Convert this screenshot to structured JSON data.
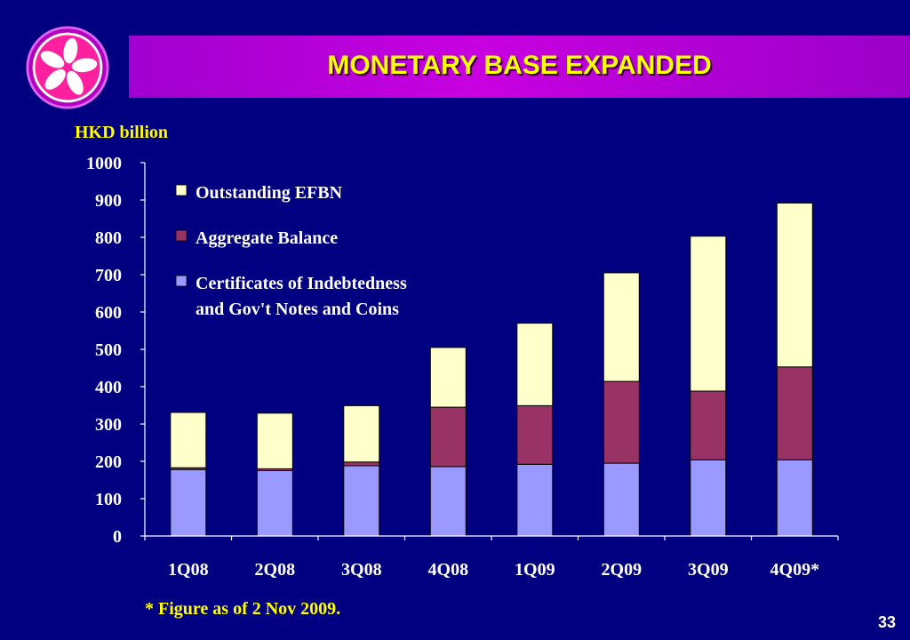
{
  "slide": {
    "title": "MONETARY BASE EXPANDED",
    "unit_label": "HKD billion",
    "footnote": "* Figure as of 2 Nov 2009.",
    "page_number": "33"
  },
  "colors": {
    "background": "#000080",
    "title_bar": "#c000e0",
    "title_text": "#ffff00",
    "efbn": "#ffffcc",
    "aggregate_balance": "#993366",
    "certificates": "#9999ff"
  },
  "chart_data": {
    "type": "bar",
    "stacked": true,
    "categories": [
      "1Q08",
      "2Q08",
      "3Q08",
      "4Q08",
      "1Q09",
      "2Q09",
      "3Q09",
      "4Q09*"
    ],
    "series": [
      {
        "name": "Certificates of Indebtedness and Gov't Notes and Coins",
        "legend_lines": [
          "Certificates of Indebtedness",
          "and Gov't Notes and Coins"
        ],
        "color": "#9999ff",
        "values": [
          178,
          175,
          188,
          186,
          192,
          195,
          204,
          204
        ]
      },
      {
        "name": "Aggregate Balance",
        "legend_lines": [
          "Aggregate Balance"
        ],
        "color": "#993366",
        "values": [
          5,
          5,
          10,
          159,
          157,
          219,
          184,
          249
        ]
      },
      {
        "name": "Outstanding EFBN",
        "legend_lines": [
          "Outstanding EFBN"
        ],
        "color": "#ffffcc",
        "values": [
          148,
          149,
          151,
          160,
          221,
          291,
          415,
          439
        ]
      }
    ],
    "ylim": [
      0,
      1000
    ],
    "yticks": [
      0,
      100,
      200,
      300,
      400,
      500,
      600,
      700,
      800,
      900,
      1000
    ],
    "ylabel": "HKD billion",
    "xlabel": "",
    "legend_placement": "top-left",
    "grid": false
  }
}
